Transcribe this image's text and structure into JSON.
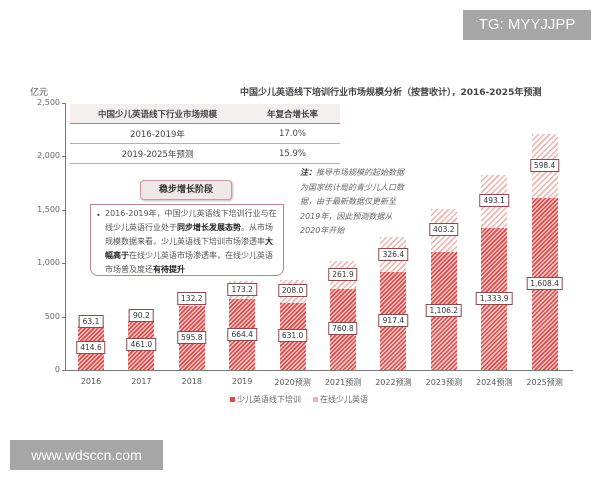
{
  "watermarks": {
    "top": "TG: MYYJJPP",
    "bottom": "www.wdsccn.com"
  },
  "chart_data": {
    "type": "bar",
    "stacked": true,
    "title": "中国少儿英语线下培训行业市场规模分析（按营收计），2016-2025年预测",
    "ylabel": "亿元",
    "xlabel": "",
    "ylim": [
      0,
      2500
    ],
    "yticks": [
      "0",
      "500",
      "1,000",
      "1,500",
      "2,000",
      "2,500"
    ],
    "categories": [
      "2016",
      "2017",
      "2018",
      "2019",
      "2020预测",
      "2021预测",
      "2022预测",
      "2023预测",
      "2024预测",
      "2025预测"
    ],
    "series": [
      {
        "name": "少儿英语线下培训",
        "values": [
          414.6,
          461.0,
          595.8,
          664.4,
          631.0,
          760.8,
          917.4,
          1106.2,
          1333.9,
          1608.4
        ],
        "labels": [
          "414.6",
          "461.0",
          "595.8",
          "664.4",
          "631.0",
          "760.8",
          "917.4",
          "1,106.2",
          "1,333.9",
          "1,608.4"
        ],
        "color": "#d94a4a"
      },
      {
        "name": "在线少儿英语",
        "values": [
          63.1,
          90.2,
          132.2,
          173.2,
          208.0,
          261.9,
          326.4,
          403.2,
          493.1,
          598.4
        ],
        "labels": [
          "63.1",
          "90.2",
          "132.2",
          "173.2",
          "208.0",
          "261.9",
          "326.4",
          "403.2",
          "493.1",
          "598.4"
        ],
        "color": "#efb3b0"
      }
    ],
    "legend_position": "bottom",
    "grid": false
  },
  "cagr_table": {
    "headers": [
      "中国少儿英语线下行业市场规模",
      "年复合增长率"
    ],
    "rows": [
      [
        "2016-2019年",
        "17.0%"
      ],
      [
        "2019-2025年预测",
        "15.9%"
      ]
    ]
  },
  "phase_label": "稳步增长阶段",
  "annotation": {
    "p1": "2016-2019年，中国少儿英语线下培训行业与在线少儿英语行业处于",
    "p1_bold": "同步增长发展态势",
    "p2": "。从市场规模数据来看，少儿英语线下培训市场渗透率",
    "p2_bold": "大幅高于",
    "p3": "在线少儿英语市场渗透率，在线少儿英语市场普及度还",
    "p3_bold": "有待提升"
  },
  "footnote": {
    "label": "注：",
    "text": "推导市场规模的起始数据为国家统计局的青少儿人口数据，由于最新数据仅更新至2019年，因此预测数据从2020年开始"
  }
}
